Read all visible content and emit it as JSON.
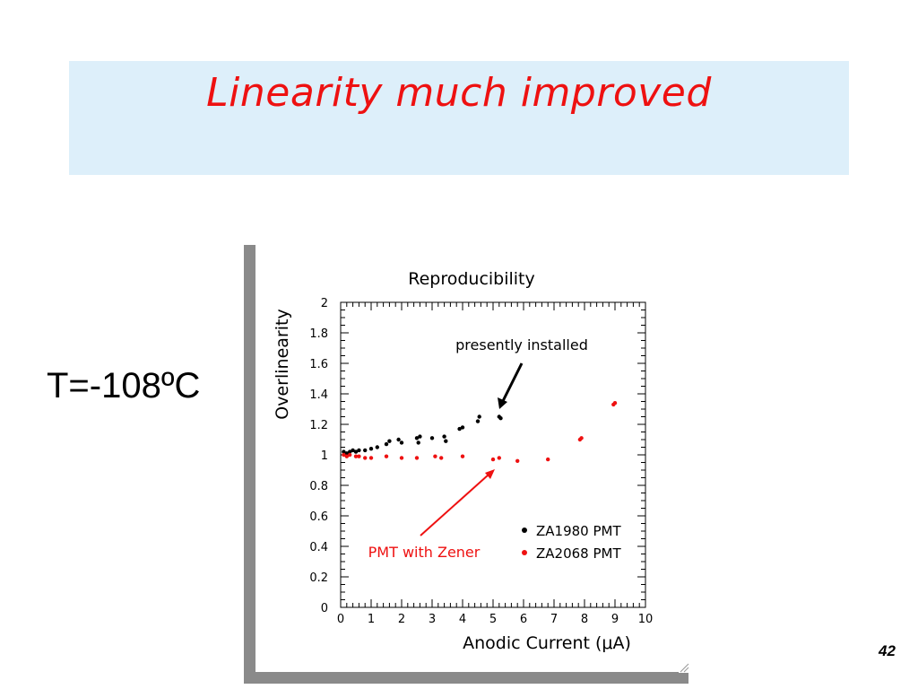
{
  "slide": {
    "title": "Linearity much improved",
    "temperature": "T=-108ºC",
    "page_number": "42",
    "title_color": "#ee1111",
    "title_box_color": "#ddeffa"
  },
  "chart_data": {
    "type": "scatter",
    "title": "Reproducibility",
    "xlabel": "Anodic Current (μA)",
    "ylabel": "Overlinearity",
    "xlim": [
      0,
      10
    ],
    "ylim": [
      0,
      2
    ],
    "x_ticks": [
      "0",
      "1",
      "2",
      "3",
      "4",
      "5",
      "6",
      "7",
      "8",
      "9",
      "10"
    ],
    "y_ticks": [
      "0",
      "0.2",
      "0.4",
      "0.6",
      "0.8",
      "1",
      "1.2",
      "1.4",
      "1.6",
      "1.8",
      "2"
    ],
    "grid": false,
    "legend_position": "lower-right",
    "series": [
      {
        "name": "ZA1980 PMT",
        "color": "#000000",
        "points": [
          [
            0.1,
            1.02
          ],
          [
            0.2,
            1.01
          ],
          [
            0.3,
            1.02
          ],
          [
            0.4,
            1.03
          ],
          [
            0.5,
            1.02
          ],
          [
            0.6,
            1.03
          ],
          [
            0.8,
            1.03
          ],
          [
            1.0,
            1.04
          ],
          [
            1.2,
            1.05
          ],
          [
            1.5,
            1.07
          ],
          [
            1.6,
            1.09
          ],
          [
            1.9,
            1.1
          ],
          [
            2.0,
            1.08
          ],
          [
            2.5,
            1.11
          ],
          [
            2.6,
            1.12
          ],
          [
            2.55,
            1.08
          ],
          [
            3.0,
            1.11
          ],
          [
            3.4,
            1.12
          ],
          [
            3.45,
            1.09
          ],
          [
            3.9,
            1.17
          ],
          [
            4.0,
            1.18
          ],
          [
            4.5,
            1.22
          ],
          [
            4.55,
            1.25
          ],
          [
            5.2,
            1.25
          ],
          [
            5.25,
            1.24
          ]
        ]
      },
      {
        "name": "ZA2068 PMT",
        "color": "#ee1111",
        "points": [
          [
            0.1,
            1.0
          ],
          [
            0.2,
            0.99
          ],
          [
            0.3,
            1.0
          ],
          [
            0.5,
            0.99
          ],
          [
            0.6,
            0.99
          ],
          [
            0.8,
            0.98
          ],
          [
            1.0,
            0.98
          ],
          [
            1.5,
            0.99
          ],
          [
            2.0,
            0.98
          ],
          [
            2.5,
            0.98
          ],
          [
            3.1,
            0.99
          ],
          [
            3.3,
            0.98
          ],
          [
            4.0,
            0.99
          ],
          [
            5.0,
            0.97
          ],
          [
            5.2,
            0.98
          ],
          [
            5.8,
            0.96
          ],
          [
            6.8,
            0.97
          ],
          [
            7.85,
            1.1
          ],
          [
            7.9,
            1.11
          ],
          [
            8.95,
            1.33
          ],
          [
            9.0,
            1.34
          ]
        ]
      }
    ],
    "annotations": [
      {
        "text": "presently installed",
        "color": "#000000",
        "x": 5.3,
        "y": 1.28
      },
      {
        "text": "PMT with Zener",
        "color": "#ee1111",
        "x": 5.0,
        "y": 0.93
      }
    ]
  }
}
